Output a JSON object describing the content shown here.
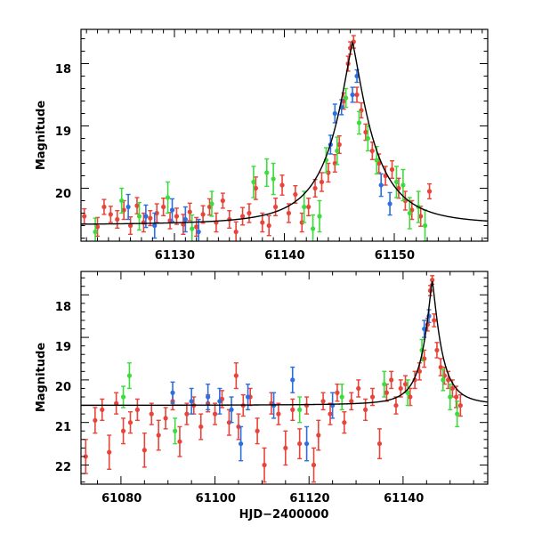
{
  "chart_data": [
    {
      "type": "scatter",
      "panel": "top",
      "title": "",
      "xlabel": "",
      "ylabel": "Magnitude",
      "xlim": [
        61121.5,
        61158.5
      ],
      "ylim": [
        20.85,
        17.45
      ],
      "xticks": [
        61130,
        61140,
        61150
      ],
      "xtick_labels": [
        "61130",
        "61140",
        "61150"
      ],
      "yticks": [
        18,
        19,
        20
      ],
      "ytick_labels": [
        "18",
        "19",
        "20"
      ],
      "model": {
        "name": "model light curve",
        "color": "#000000",
        "t0": 61146.2,
        "base": 20.6,
        "amp": 2.95,
        "tau": 2.2
      },
      "series": [
        {
          "name": "red",
          "color": "#e8443a",
          "points": [
            [
              61121.8,
              20.45,
              0.12
            ],
            [
              61123.0,
              20.62,
              0.15
            ],
            [
              61123.6,
              20.3,
              0.12
            ],
            [
              61124.2,
              20.42,
              0.13
            ],
            [
              61124.8,
              20.5,
              0.14
            ],
            [
              61125.4,
              20.35,
              0.15
            ],
            [
              61126.0,
              20.6,
              0.14
            ],
            [
              61126.6,
              20.28,
              0.13
            ],
            [
              61127.2,
              20.55,
              0.15
            ],
            [
              61127.8,
              20.48,
              0.12
            ],
            [
              61128.4,
              20.4,
              0.15
            ],
            [
              61129.0,
              20.3,
              0.14
            ],
            [
              61129.6,
              20.52,
              0.13
            ],
            [
              61130.2,
              20.45,
              0.13
            ],
            [
              61130.8,
              20.58,
              0.16
            ],
            [
              61131.4,
              20.38,
              0.14
            ],
            [
              61132.0,
              20.62,
              0.15
            ],
            [
              61132.6,
              20.42,
              0.14
            ],
            [
              61133.2,
              20.3,
              0.13
            ],
            [
              61133.8,
              20.55,
              0.15
            ],
            [
              61134.4,
              20.2,
              0.12
            ],
            [
              61135.0,
              20.5,
              0.14
            ],
            [
              61135.6,
              20.7,
              0.16
            ],
            [
              61136.2,
              20.45,
              0.14
            ],
            [
              61136.8,
              20.4,
              0.15
            ],
            [
              61137.4,
              20.0,
              0.18
            ],
            [
              61138.0,
              20.55,
              0.15
            ],
            [
              61138.6,
              20.6,
              0.16
            ],
            [
              61139.2,
              20.3,
              0.14
            ],
            [
              61139.8,
              19.95,
              0.16
            ],
            [
              61140.4,
              20.4,
              0.15
            ],
            [
              61141.0,
              20.1,
              0.14
            ],
            [
              61141.6,
              20.55,
              0.15
            ],
            [
              61142.2,
              20.3,
              0.14
            ],
            [
              61142.8,
              20.0,
              0.14
            ],
            [
              61143.4,
              19.9,
              0.15
            ],
            [
              61144.0,
              19.75,
              0.15
            ],
            [
              61144.6,
              19.6,
              0.14
            ],
            [
              61145.0,
              19.3,
              0.14
            ],
            [
              61145.4,
              18.6,
              0.13
            ],
            [
              61145.8,
              18.0,
              0.12
            ],
            [
              61146.0,
              17.75,
              0.1
            ],
            [
              61146.3,
              17.65,
              0.1
            ],
            [
              61146.6,
              18.5,
              0.12
            ],
            [
              61147.0,
              18.75,
              0.12
            ],
            [
              61147.4,
              19.1,
              0.13
            ],
            [
              61148.0,
              19.4,
              0.14
            ],
            [
              61148.6,
              19.6,
              0.15
            ],
            [
              61149.2,
              19.8,
              0.15
            ],
            [
              61149.8,
              19.7,
              0.14
            ],
            [
              61150.4,
              20.0,
              0.16
            ],
            [
              61151.0,
              20.2,
              0.15
            ],
            [
              61151.6,
              20.35,
              0.15
            ],
            [
              61152.4,
              20.45,
              0.16
            ],
            [
              61153.2,
              20.05,
              0.12
            ]
          ]
        },
        {
          "name": "green",
          "color": "#3ddc3d",
          "points": [
            [
              61122.8,
              20.7,
              0.22
            ],
            [
              61125.2,
              20.2,
              0.2
            ],
            [
              61126.8,
              20.45,
              0.22
            ],
            [
              61129.4,
              20.15,
              0.25
            ],
            [
              61131.6,
              20.65,
              0.22
            ],
            [
              61133.4,
              20.25,
              0.2
            ],
            [
              61137.2,
              19.9,
              0.25
            ],
            [
              61138.4,
              19.75,
              0.22
            ],
            [
              61139.0,
              19.85,
              0.25
            ],
            [
              61141.8,
              20.3,
              0.25
            ],
            [
              61142.6,
              20.65,
              0.22
            ],
            [
              61143.2,
              20.45,
              0.25
            ],
            [
              61143.8,
              19.55,
              0.2
            ],
            [
              61144.8,
              19.4,
              0.22
            ],
            [
              61145.6,
              18.55,
              0.15
            ],
            [
              61146.8,
              18.95,
              0.18
            ],
            [
              61147.6,
              19.2,
              0.2
            ],
            [
              61148.4,
              19.55,
              0.22
            ],
            [
              61150.2,
              19.9,
              0.25
            ],
            [
              61150.8,
              19.95,
              0.25
            ],
            [
              61151.4,
              20.4,
              0.25
            ],
            [
              61152.2,
              20.3,
              0.25
            ],
            [
              61152.8,
              20.6,
              0.25
            ]
          ]
        },
        {
          "name": "blue",
          "color": "#2d6fe0",
          "points": [
            [
              61125.8,
              20.3,
              0.2
            ],
            [
              61127.4,
              20.45,
              0.18
            ],
            [
              61128.2,
              20.6,
              0.2
            ],
            [
              61129.8,
              20.35,
              0.18
            ],
            [
              61131.0,
              20.5,
              0.2
            ],
            [
              61132.2,
              20.7,
              0.2
            ],
            [
              61144.2,
              19.3,
              0.15
            ],
            [
              61144.6,
              18.8,
              0.15
            ],
            [
              61145.2,
              18.7,
              0.12
            ],
            [
              61146.2,
              18.5,
              0.12
            ],
            [
              61146.6,
              18.2,
              0.1
            ],
            [
              61148.8,
              19.95,
              0.18
            ],
            [
              61149.6,
              20.25,
              0.18
            ]
          ]
        }
      ]
    },
    {
      "type": "scatter",
      "panel": "bottom",
      "title": "",
      "xlabel": "HJD−2400000",
      "ylabel": "Magnitude",
      "xlim": [
        61071.5,
        61158.0
      ],
      "ylim": [
        22.45,
        17.45
      ],
      "xticks": [
        61080,
        61100,
        61120,
        61140
      ],
      "xtick_labels": [
        "61080",
        "61100",
        "61120",
        "61140"
      ],
      "yticks": [
        18,
        19,
        20,
        21,
        22
      ],
      "ytick_labels": [
        "18",
        "19",
        "20",
        "21",
        "22"
      ],
      "model": {
        "name": "model light curve",
        "color": "#000000",
        "t0": 61146.2,
        "base": 20.6,
        "amp": 2.95,
        "tau": 2.2
      },
      "series": [
        {
          "name": "red",
          "color": "#e8443a",
          "points": [
            [
              61072.5,
              21.8,
              0.4
            ],
            [
              61074.5,
              20.95,
              0.3
            ],
            [
              61076.0,
              20.7,
              0.25
            ],
            [
              61077.5,
              21.7,
              0.4
            ],
            [
              61079.0,
              20.55,
              0.25
            ],
            [
              61080.5,
              21.2,
              0.3
            ],
            [
              61082.0,
              21.0,
              0.25
            ],
            [
              61083.5,
              20.7,
              0.25
            ],
            [
              61085.0,
              21.65,
              0.4
            ],
            [
              61086.5,
              20.8,
              0.25
            ],
            [
              61088.0,
              21.3,
              0.35
            ],
            [
              61089.5,
              20.9,
              0.25
            ],
            [
              61091.0,
              20.5,
              0.2
            ],
            [
              61092.5,
              21.45,
              0.35
            ],
            [
              61094.0,
              20.8,
              0.25
            ],
            [
              61095.5,
              20.6,
              0.2
            ],
            [
              61097.0,
              21.1,
              0.3
            ],
            [
              61098.5,
              20.55,
              0.2
            ],
            [
              61100.0,
              20.8,
              0.25
            ],
            [
              61101.5,
              20.45,
              0.2
            ],
            [
              61103.0,
              21.0,
              0.3
            ],
            [
              61104.5,
              19.9,
              0.3
            ],
            [
              61105.0,
              21.1,
              0.3
            ],
            [
              61106.0,
              20.6,
              0.25
            ],
            [
              61107.5,
              20.4,
              0.2
            ],
            [
              61109.0,
              21.2,
              0.3
            ],
            [
              61110.5,
              22.0,
              0.4
            ],
            [
              61112.0,
              20.55,
              0.25
            ],
            [
              61113.5,
              20.8,
              0.25
            ],
            [
              61115.0,
              21.6,
              0.4
            ],
            [
              61116.5,
              20.7,
              0.25
            ],
            [
              61118.0,
              21.5,
              0.35
            ],
            [
              61119.5,
              20.6,
              0.2
            ],
            [
              61121.0,
              22.0,
              0.4
            ],
            [
              61122.0,
              21.3,
              0.35
            ],
            [
              61123.0,
              20.5,
              0.2
            ],
            [
              61124.5,
              20.8,
              0.25
            ],
            [
              61126.0,
              20.3,
              0.2
            ],
            [
              61127.5,
              21.0,
              0.25
            ],
            [
              61129.0,
              20.5,
              0.2
            ],
            [
              61130.5,
              20.2,
              0.2
            ],
            [
              61132.0,
              20.7,
              0.25
            ],
            [
              61133.5,
              20.4,
              0.2
            ],
            [
              61135.0,
              21.5,
              0.35
            ],
            [
              61136.5,
              20.3,
              0.2
            ],
            [
              61137.5,
              20.0,
              0.2
            ],
            [
              61138.5,
              20.6,
              0.2
            ],
            [
              61139.5,
              20.2,
              0.2
            ],
            [
              61140.5,
              20.1,
              0.2
            ],
            [
              61141.5,
              20.4,
              0.2
            ],
            [
              61142.5,
              20.0,
              0.2
            ],
            [
              61143.5,
              19.8,
              0.2
            ],
            [
              61144.5,
              19.5,
              0.2
            ],
            [
              61145.2,
              18.7,
              0.15
            ],
            [
              61145.8,
              17.9,
              0.12
            ],
            [
              61146.2,
              17.65,
              0.1
            ],
            [
              61146.6,
              18.6,
              0.15
            ],
            [
              61147.2,
              19.3,
              0.18
            ],
            [
              61148.0,
              19.7,
              0.2
            ],
            [
              61148.8,
              19.9,
              0.2
            ],
            [
              61149.6,
              20.0,
              0.2
            ],
            [
              61150.5,
              20.2,
              0.2
            ],
            [
              61151.3,
              20.4,
              0.25
            ],
            [
              61152.2,
              20.6,
              0.25
            ]
          ]
        },
        {
          "name": "green",
          "color": "#3ddc3d",
          "points": [
            [
              61080.5,
              20.4,
              0.25
            ],
            [
              61081.8,
              19.9,
              0.3
            ],
            [
              61091.5,
              21.2,
              0.3
            ],
            [
              61118.0,
              20.7,
              0.3
            ],
            [
              61127.0,
              20.4,
              0.3
            ],
            [
              61136.0,
              20.1,
              0.3
            ],
            [
              61141.0,
              20.3,
              0.3
            ],
            [
              61144.0,
              19.3,
              0.25
            ],
            [
              61148.5,
              20.0,
              0.25
            ],
            [
              61150.0,
              20.4,
              0.3
            ],
            [
              61151.5,
              20.8,
              0.3
            ]
          ]
        },
        {
          "name": "blue",
          "color": "#2d6fe0",
          "points": [
            [
              61091.0,
              20.3,
              0.25
            ],
            [
              61095.0,
              20.5,
              0.3
            ],
            [
              61098.5,
              20.4,
              0.3
            ],
            [
              61101.0,
              20.5,
              0.3
            ],
            [
              61103.5,
              20.7,
              0.3
            ],
            [
              61105.5,
              21.5,
              0.4
            ],
            [
              61107.0,
              20.4,
              0.3
            ],
            [
              61112.5,
              20.6,
              0.3
            ],
            [
              61116.5,
              20.0,
              0.3
            ],
            [
              61119.5,
              21.5,
              0.4
            ],
            [
              61125.0,
              20.6,
              0.3
            ],
            [
              61144.5,
              18.8,
              0.2
            ],
            [
              61145.5,
              18.5,
              0.15
            ]
          ]
        }
      ]
    }
  ]
}
